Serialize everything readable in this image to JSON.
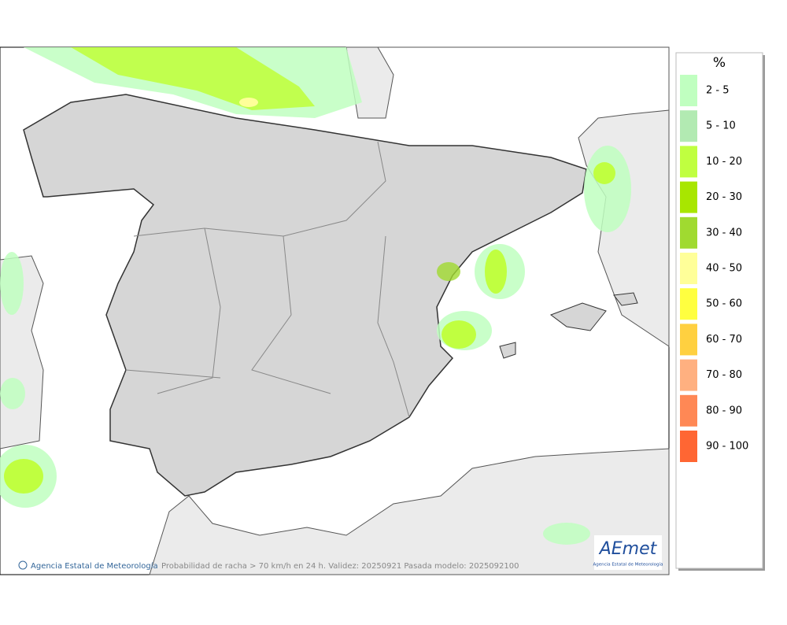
{
  "legend": {
    "title": "%",
    "items": [
      {
        "label": "2 - 5",
        "color": "#c0ffc0"
      },
      {
        "label": "5 - 10",
        "color": "#b2eab2"
      },
      {
        "label": "10 - 20",
        "color": "#c0ff40"
      },
      {
        "label": "20 - 30",
        "color": "#a8e600"
      },
      {
        "label": "30 - 40",
        "color": "#a0da30"
      },
      {
        "label": "40 - 50",
        "color": "#ffff99"
      },
      {
        "label": "50 - 60",
        "color": "#ffff40"
      },
      {
        "label": "60 - 70",
        "color": "#ffd040"
      },
      {
        "label": "70 - 80",
        "color": "#ffb080"
      },
      {
        "label": "80 - 90",
        "color": "#ff8855"
      },
      {
        "label": "90 - 100",
        "color": "#ff6633"
      }
    ]
  },
  "footer": {
    "credit": "Agencia Estatal de Meteorología",
    "caption": "Probabilidad de racha > 70 km/h en 24 h. Validez: 20250921 Pasada modelo: 2025092100"
  },
  "logo": {
    "name": "AEmet",
    "subtitle": "Agencia Estatal de Meteorología"
  }
}
